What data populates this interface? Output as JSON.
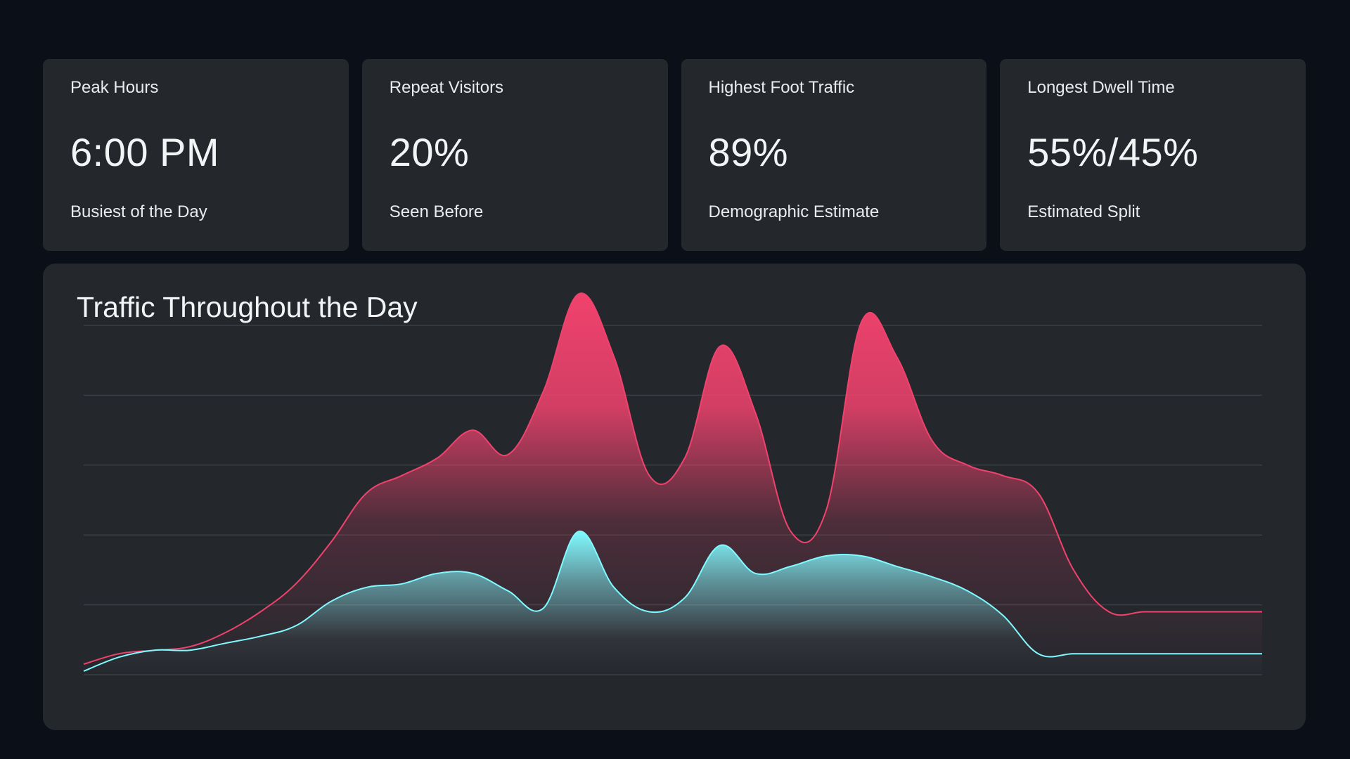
{
  "stats": [
    {
      "label": "Peak Hours",
      "value": "6:00 PM",
      "caption": "Busiest of the Day"
    },
    {
      "label": "Repeat Visitors",
      "value": "20%",
      "caption": "Seen Before"
    },
    {
      "label": "Highest Foot Traffic",
      "value": "89%",
      "caption": "Demographic Estimate"
    },
    {
      "label": "Longest Dwell Time",
      "value": "55%/45%",
      "caption": "Estimated Split"
    }
  ],
  "colors": {
    "background": "#0b1018",
    "card": "#24282d",
    "series_pink": "#f0426d",
    "series_cyan": "#7ffaff",
    "gridline": "#3a3f45"
  },
  "chart_data": {
    "type": "area",
    "title": "Traffic Throughout the Day",
    "xlabel": "",
    "ylabel": "",
    "grid": true,
    "legend": "none",
    "ylim": [
      0,
      100
    ],
    "x": [
      0,
      3,
      6,
      9,
      12,
      15,
      18,
      21,
      24,
      27,
      30,
      33,
      36,
      39,
      42,
      45,
      48,
      51,
      54,
      57,
      60,
      63,
      66,
      69,
      72,
      75,
      78,
      81,
      84,
      87,
      90,
      93,
      96,
      99,
      100
    ],
    "series": [
      {
        "color": "#f0426d",
        "values": [
          3,
          6,
          7,
          8,
          12,
          18,
          26,
          38,
          52,
          57,
          62,
          70,
          63,
          81,
          109,
          91,
          57,
          62,
          94,
          75,
          41,
          47,
          101,
          91,
          67,
          60,
          57,
          52,
          30,
          18,
          18,
          18,
          18,
          18,
          18
        ]
      },
      {
        "color": "#7ffaff",
        "values": [
          1,
          5,
          7,
          7,
          9,
          11,
          14,
          21,
          25,
          26,
          29,
          29,
          24,
          19,
          41,
          25,
          18,
          22,
          37,
          29,
          31,
          34,
          34,
          31,
          28,
          24,
          17,
          6,
          6,
          6,
          6,
          6,
          6,
          6,
          6
        ]
      }
    ]
  }
}
